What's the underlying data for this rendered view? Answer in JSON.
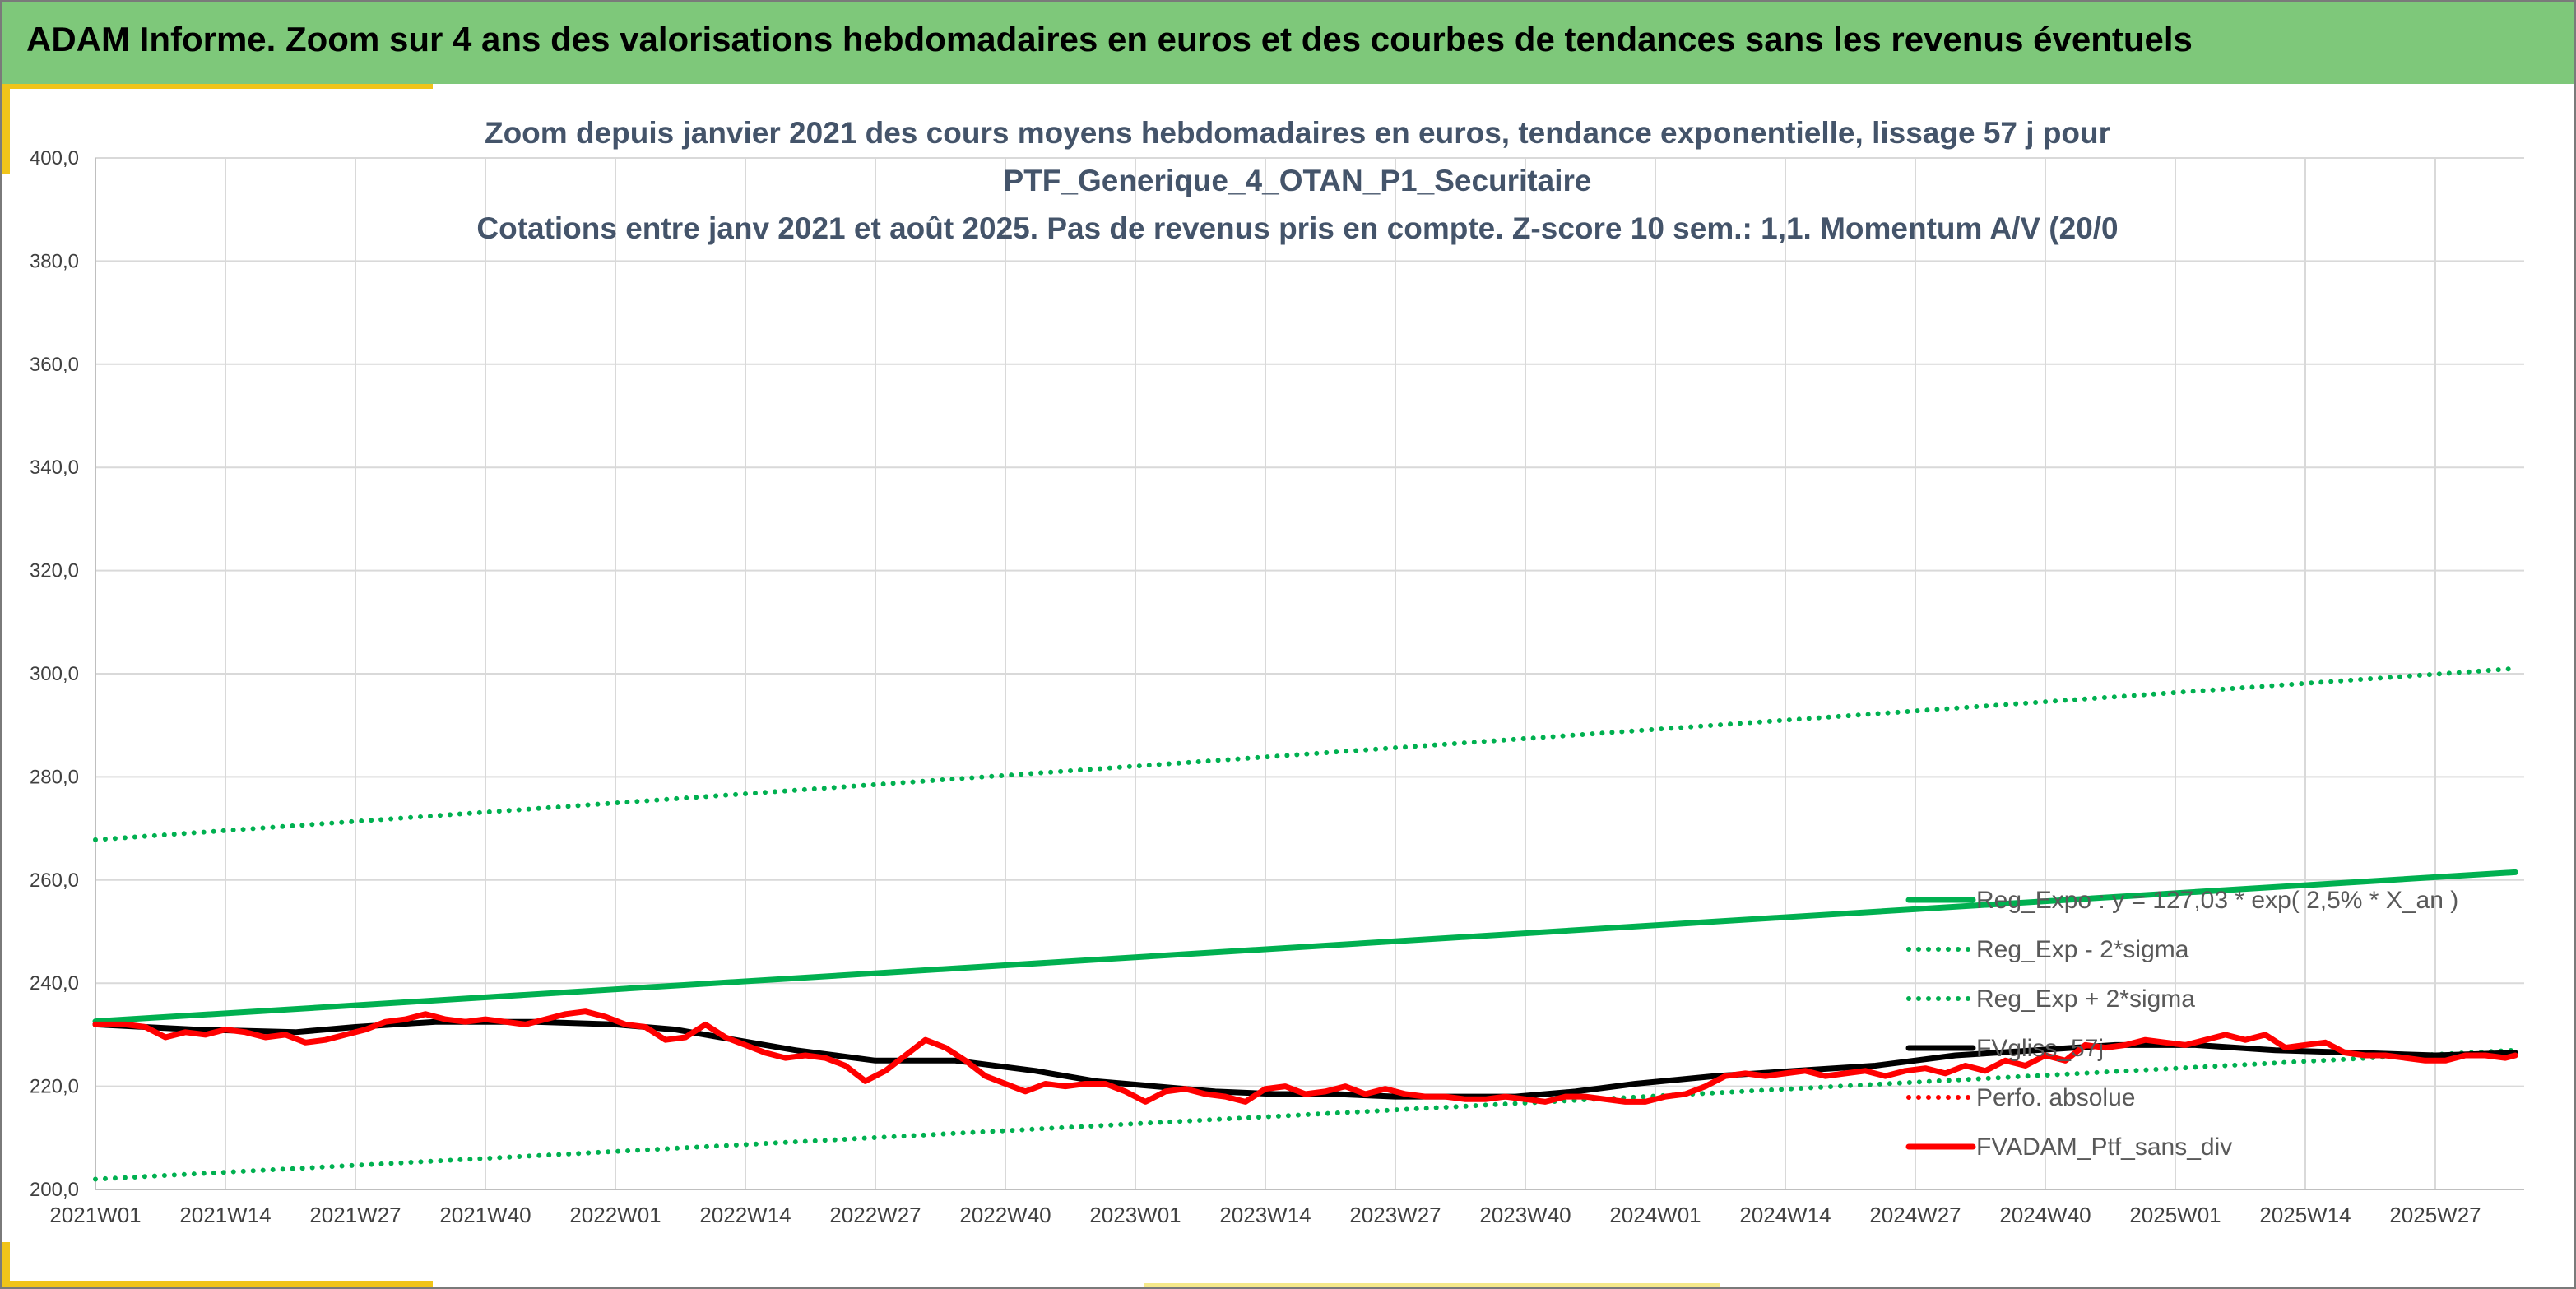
{
  "header": {
    "title": "ADAM Informe. Zoom sur 4 ans des valorisations hebdomadaires en euros et des courbes de tendances sans les revenus éventuels"
  },
  "colors": {
    "banner": "#7ec87a",
    "accent": "#f0c419",
    "regression": "#00b050",
    "smoothed": "#000000",
    "portfolio": "#ff0000",
    "grid": "#d9d9d9"
  },
  "chart_data": {
    "type": "line",
    "title_lines": [
      "Zoom depuis janvier 2021 des cours moyens hebdomadaires en euros, tendance exponentielle, lissage 57 j pour",
      "PTF_Generique_4_OTAN_P1_Securitaire",
      "Cotations entre janv 2021 et août 2025. Pas de revenus pris en compte. Z-score 10 sem.: 1,1. Momentum A/V (20/0"
    ],
    "xlabel": "",
    "ylabel": "",
    "ylim": [
      200,
      400
    ],
    "ytick_step": 20,
    "y_tick_labels": [
      "200,0",
      "220,0",
      "240,0",
      "260,0",
      "280,0",
      "300,0",
      "320,0",
      "340,0",
      "360,0",
      "380,0",
      "400,0"
    ],
    "x_tick_labels": [
      "2021W01",
      "2021W14",
      "2021W27",
      "2021W40",
      "2022W01",
      "2022W14",
      "2022W27",
      "2022W40",
      "2023W01",
      "2023W14",
      "2023W27",
      "2023W40",
      "2024W01",
      "2024W14",
      "2024W27",
      "2024W40",
      "2025W01",
      "2025W14",
      "2025W27"
    ],
    "x_range_weeks": [
      0,
      242
    ],
    "grid": true,
    "legend_position": "right",
    "series": [
      {
        "name": "Reg_Expo : y = 127,03 * exp( 2,5% *  X_an )",
        "style": "solid-thick",
        "color": "#00b050",
        "x": [
          0,
          242
        ],
        "values": [
          232.6,
          261.5
        ]
      },
      {
        "name": "Reg_Exp - 2*sigma",
        "style": "dotted",
        "color": "#00b050",
        "x": [
          0,
          242
        ],
        "values": [
          202.0,
          227.0
        ]
      },
      {
        "name": "Reg_Exp + 2*sigma",
        "style": "dotted",
        "color": "#00b050",
        "x": [
          0,
          242
        ],
        "values": [
          267.8,
          301.0
        ]
      },
      {
        "name": "FVgliss_57j",
        "style": "solid-thick",
        "color": "#000000",
        "x": [
          0,
          10,
          20,
          26,
          34,
          44,
          52,
          58,
          64,
          70,
          78,
          86,
          94,
          100,
          106,
          112,
          118,
          124,
          130,
          136,
          142,
          148,
          154,
          162,
          170,
          178,
          186,
          194,
          202,
          210,
          218,
          226,
          234,
          242
        ],
        "values": [
          232.0,
          231.0,
          230.5,
          231.5,
          232.5,
          232.5,
          232.0,
          231.0,
          229.0,
          227.0,
          225.0,
          225.0,
          223.0,
          221.0,
          220.0,
          219.0,
          218.5,
          218.5,
          218.0,
          218.0,
          218.0,
          219.0,
          220.5,
          222.0,
          223.0,
          224.0,
          226.0,
          227.0,
          228.0,
          228.0,
          227.0,
          226.5,
          226.0,
          226.5
        ]
      },
      {
        "name": "Perfo. absolue",
        "style": "dotted",
        "color": "#ff0000",
        "x": [],
        "values": []
      },
      {
        "name": "FVADAM_Ptf_sans_div",
        "style": "solid-thick",
        "color": "#ff0000",
        "x": [
          0,
          3,
          5,
          7,
          9,
          11,
          13,
          15,
          17,
          19,
          21,
          23,
          25,
          27,
          29,
          31,
          33,
          35,
          37,
          39,
          41,
          43,
          45,
          47,
          49,
          51,
          53,
          55,
          57,
          59,
          61,
          63,
          65,
          67,
          69,
          71,
          73,
          75,
          77,
          79,
          81,
          83,
          85,
          87,
          89,
          91,
          93,
          95,
          97,
          99,
          101,
          103,
          105,
          107,
          109,
          111,
          113,
          115,
          117,
          119,
          121,
          123,
          125,
          127,
          129,
          131,
          133,
          135,
          137,
          139,
          141,
          143,
          145,
          147,
          149,
          151,
          153,
          155,
          157,
          159,
          161,
          163,
          165,
          167,
          169,
          171,
          173,
          175,
          177,
          179,
          181,
          183,
          185,
          187,
          189,
          191,
          193,
          195,
          197,
          199,
          201,
          203,
          205,
          207,
          209,
          211,
          213,
          215,
          217,
          219,
          221,
          223,
          225,
          227,
          229,
          231,
          233,
          235,
          237,
          239,
          241,
          242
        ],
        "values": [
          232.0,
          232.0,
          231.5,
          229.5,
          230.5,
          230.0,
          231.0,
          230.5,
          229.5,
          230.0,
          228.5,
          229.0,
          230.0,
          231.0,
          232.5,
          233.0,
          234.0,
          233.0,
          232.5,
          233.0,
          232.5,
          232.0,
          233.0,
          234.0,
          234.5,
          233.5,
          232.0,
          231.5,
          229.0,
          229.5,
          232.0,
          229.5,
          228.0,
          226.5,
          225.5,
          226.0,
          225.5,
          224.0,
          221.0,
          223.0,
          226.0,
          229.0,
          227.5,
          225.0,
          222.0,
          220.5,
          219.0,
          220.5,
          220.0,
          220.5,
          220.5,
          219.0,
          217.0,
          219.0,
          219.5,
          218.5,
          218.0,
          217.0,
          219.5,
          220.0,
          218.5,
          219.0,
          220.0,
          218.5,
          219.5,
          218.5,
          218.0,
          218.0,
          217.5,
          217.5,
          218.0,
          217.5,
          217.0,
          218.0,
          218.0,
          217.5,
          217.0,
          217.0,
          218.0,
          218.5,
          220.0,
          222.0,
          222.5,
          222.0,
          222.5,
          223.0,
          222.0,
          222.5,
          223.0,
          222.0,
          223.0,
          223.5,
          222.5,
          224.0,
          223.0,
          225.0,
          224.0,
          226.0,
          225.0,
          228.0,
          227.5,
          228.0,
          229.0,
          228.5,
          228.0,
          229.0,
          230.0,
          229.0,
          230.0,
          227.5,
          228.0,
          228.5,
          226.5,
          226.0,
          226.0,
          225.5,
          225.0,
          225.0,
          226.0,
          226.0,
          225.5,
          226.0
        ]
      }
    ]
  }
}
